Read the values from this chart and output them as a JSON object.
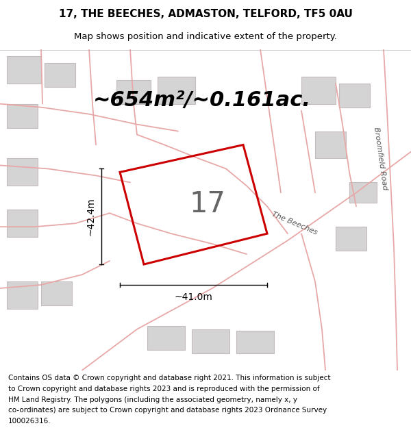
{
  "title_line1": "17, THE BEECHES, ADMASTON, TELFORD, TF5 0AU",
  "title_line2": "Map shows position and indicative extent of the property.",
  "area_text": "~654m²/~0.161ac.",
  "label_17": "17",
  "dim_vertical": "~42.4m",
  "dim_horizontal": "~41.0m",
  "footer_lines": [
    "Contains OS data © Crown copyright and database right 2021. This information is subject",
    "to Crown copyright and database rights 2023 and is reproduced with the permission of",
    "HM Land Registry. The polygons (including the associated geometry, namely x, y",
    "co-ordinates) are subject to Crown copyright and database rights 2023 Ordnance Survey",
    "100026316."
  ],
  "road_label_1": "Broomfield Road",
  "road_label_2": "The Beeches",
  "bg_color": "#ebebeb",
  "map_bg": "#e4e4e4",
  "plot_color_edge": "#cc0000",
  "road_color": "#e8a8a8",
  "building_color": "#d4d4d4",
  "building_edge": "#c4bcbc",
  "title_fontsize": 11,
  "subtitle_fontsize": 9.5,
  "area_fontsize": 22,
  "dim_fontsize": 10,
  "footer_fontsize": 7.5,
  "road_label_fontsize": 8
}
